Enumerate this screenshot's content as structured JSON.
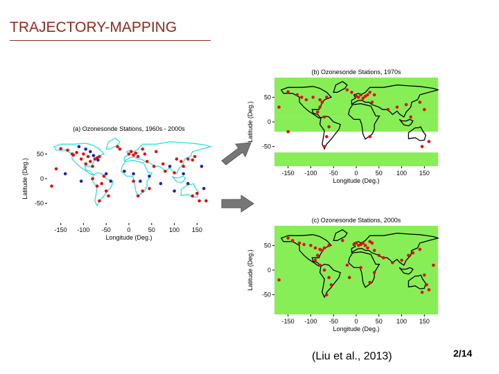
{
  "slide": {
    "title": "TRAJECTORY-MAPPING",
    "citation": "(Liu et al., 2013)",
    "page_number": "2/14"
  },
  "colors": {
    "title": "#8b2b1e",
    "land_outline_a": "#33dddd",
    "green_fill": "#88ee55",
    "station_red": "#dd1111",
    "station_blue": "#2222aa",
    "arrow_gray": "#777777"
  },
  "chart_data": [
    {
      "type": "scatter",
      "title": "(a) Ozonesonde Stations, 1960s - 2000s",
      "xlabel": "Longitude (Deg.)",
      "ylabel": "Latitude (Deg.)",
      "xlim": [
        -180,
        180
      ],
      "ylim": [
        -90,
        90
      ],
      "xticks": [
        -150,
        -100,
        -50,
        0,
        50,
        100,
        150
      ],
      "yticks": [
        50,
        0,
        -50
      ],
      "series": [
        {
          "name": "red stations",
          "points": [
            [
              -150,
              61
            ],
            [
              -135,
              58
            ],
            [
              -125,
              50
            ],
            [
              -122,
              48
            ],
            [
              -115,
              53
            ],
            [
              -105,
              40
            ],
            [
              -100,
              50
            ],
            [
              -95,
              30
            ],
            [
              -90,
              45
            ],
            [
              -85,
              35
            ],
            [
              -80,
              25
            ],
            [
              -75,
              40
            ],
            [
              -70,
              42
            ],
            [
              -65,
              45
            ],
            [
              -60,
              -10
            ],
            [
              -55,
              5
            ],
            [
              -50,
              -25
            ],
            [
              -45,
              -35
            ],
            [
              -80,
              0
            ],
            [
              -70,
              -15
            ],
            [
              -65,
              -45
            ],
            [
              0,
              50
            ],
            [
              5,
              55
            ],
            [
              10,
              48
            ],
            [
              15,
              52
            ],
            [
              20,
              45
            ],
            [
              30,
              60
            ],
            [
              35,
              50
            ],
            [
              40,
              35
            ],
            [
              55,
              25
            ],
            [
              75,
              30
            ],
            [
              80,
              15
            ],
            [
              100,
              12
            ],
            [
              105,
              40
            ],
            [
              115,
              35
            ],
            [
              120,
              25
            ],
            [
              130,
              40
            ],
            [
              140,
              38
            ],
            [
              145,
              45
            ],
            [
              150,
              -30
            ],
            [
              155,
              -45
            ],
            [
              -25,
              65
            ],
            [
              -20,
              60
            ],
            [
              60,
              55
            ],
            [
              10,
              -5
            ],
            [
              30,
              -25
            ],
            [
              45,
              -20
            ],
            [
              -170,
              -15
            ],
            [
              -160,
              20
            ],
            [
              140,
              -35
            ],
            [
              170,
              -45
            ],
            [
              20,
              -35
            ]
          ]
        },
        {
          "name": "blue stations",
          "points": [
            [
              -110,
              65
            ],
            [
              -95,
              60
            ],
            [
              -85,
              55
            ],
            [
              -78,
              47
            ],
            [
              -68,
              38
            ],
            [
              -105,
              -5
            ],
            [
              -50,
              10
            ],
            [
              -40,
              -5
            ],
            [
              -10,
              15
            ],
            [
              10,
              10
            ],
            [
              25,
              -5
            ],
            [
              45,
              5
            ],
            [
              70,
              -10
            ],
            [
              90,
              25
            ],
            [
              100,
              -25
            ],
            [
              120,
              10
            ],
            [
              130,
              -10
            ],
            [
              160,
              25
            ],
            [
              165,
              -20
            ],
            [
              -140,
              10
            ]
          ]
        }
      ]
    },
    {
      "type": "scatter",
      "title": "(b) Ozonesonde Stations, 1970s",
      "xlabel": "Longitude (Deg.)",
      "ylabel": "Latitude (Deg.)",
      "xlim": [
        -180,
        180
      ],
      "ylim": [
        -90,
        90
      ],
      "xticks": [
        -150,
        -100,
        -50,
        0,
        50,
        100,
        150
      ],
      "yticks": [
        50,
        0,
        -50
      ],
      "series": [
        {
          "name": "stations",
          "points": [
            [
              -150,
              61
            ],
            [
              -130,
              55
            ],
            [
              -120,
              50
            ],
            [
              -110,
              45
            ],
            [
              -95,
              50
            ],
            [
              -80,
              45
            ],
            [
              -75,
              40
            ],
            [
              -65,
              50
            ],
            [
              -80,
              30
            ],
            [
              -85,
              20
            ],
            [
              -70,
              10
            ],
            [
              -60,
              -10
            ],
            [
              -65,
              -30
            ],
            [
              -70,
              -50
            ],
            [
              0,
              52
            ],
            [
              5,
              50
            ],
            [
              10,
              55
            ],
            [
              15,
              48
            ],
            [
              20,
              52
            ],
            [
              25,
              55
            ],
            [
              30,
              60
            ],
            [
              40,
              55
            ],
            [
              -20,
              65
            ],
            [
              -10,
              60
            ],
            [
              35,
              40
            ],
            [
              70,
              25
            ],
            [
              90,
              30
            ],
            [
              110,
              35
            ],
            [
              140,
              40
            ],
            [
              150,
              25
            ],
            [
              120,
              10
            ],
            [
              -150,
              -20
            ],
            [
              160,
              -40
            ],
            [
              145,
              -50
            ],
            [
              30,
              -30
            ],
            [
              -170,
              30
            ]
          ]
        }
      ]
    },
    {
      "type": "scatter",
      "title": "(c) Ozonesonde Stations, 2000s",
      "xlabel": "Longitude (Deg.)",
      "ylabel": "Latitude (Deg.)",
      "xlim": [
        -180,
        180
      ],
      "ylim": [
        -90,
        90
      ],
      "xticks": [
        -150,
        -100,
        -50,
        0,
        50,
        100,
        150
      ],
      "yticks": [
        50,
        0,
        -50
      ],
      "series": [
        {
          "name": "stations",
          "points": [
            [
              -150,
              65
            ],
            [
              -140,
              60
            ],
            [
              -125,
              55
            ],
            [
              -115,
              52
            ],
            [
              -100,
              50
            ],
            [
              -90,
              45
            ],
            [
              -80,
              42
            ],
            [
              -75,
              40
            ],
            [
              -70,
              45
            ],
            [
              -60,
              50
            ],
            [
              -85,
              30
            ],
            [
              -90,
              20
            ],
            [
              -80,
              10
            ],
            [
              -70,
              0
            ],
            [
              -60,
              -15
            ],
            [
              -55,
              -30
            ],
            [
              -65,
              -50
            ],
            [
              -5,
              52
            ],
            [
              0,
              55
            ],
            [
              5,
              50
            ],
            [
              10,
              52
            ],
            [
              15,
              55
            ],
            [
              20,
              50
            ],
            [
              25,
              45
            ],
            [
              30,
              58
            ],
            [
              35,
              55
            ],
            [
              40,
              40
            ],
            [
              50,
              30
            ],
            [
              60,
              25
            ],
            [
              80,
              15
            ],
            [
              100,
              20
            ],
            [
              115,
              30
            ],
            [
              125,
              35
            ],
            [
              140,
              42
            ],
            [
              150,
              -10
            ],
            [
              155,
              -30
            ],
            [
              160,
              -40
            ],
            [
              145,
              -45
            ],
            [
              30,
              -25
            ],
            [
              40,
              -5
            ],
            [
              10,
              5
            ],
            [
              -20,
              10
            ],
            [
              -30,
              60
            ],
            [
              -15,
              -15
            ],
            [
              -170,
              -20
            ],
            [
              170,
              10
            ]
          ]
        }
      ]
    }
  ]
}
